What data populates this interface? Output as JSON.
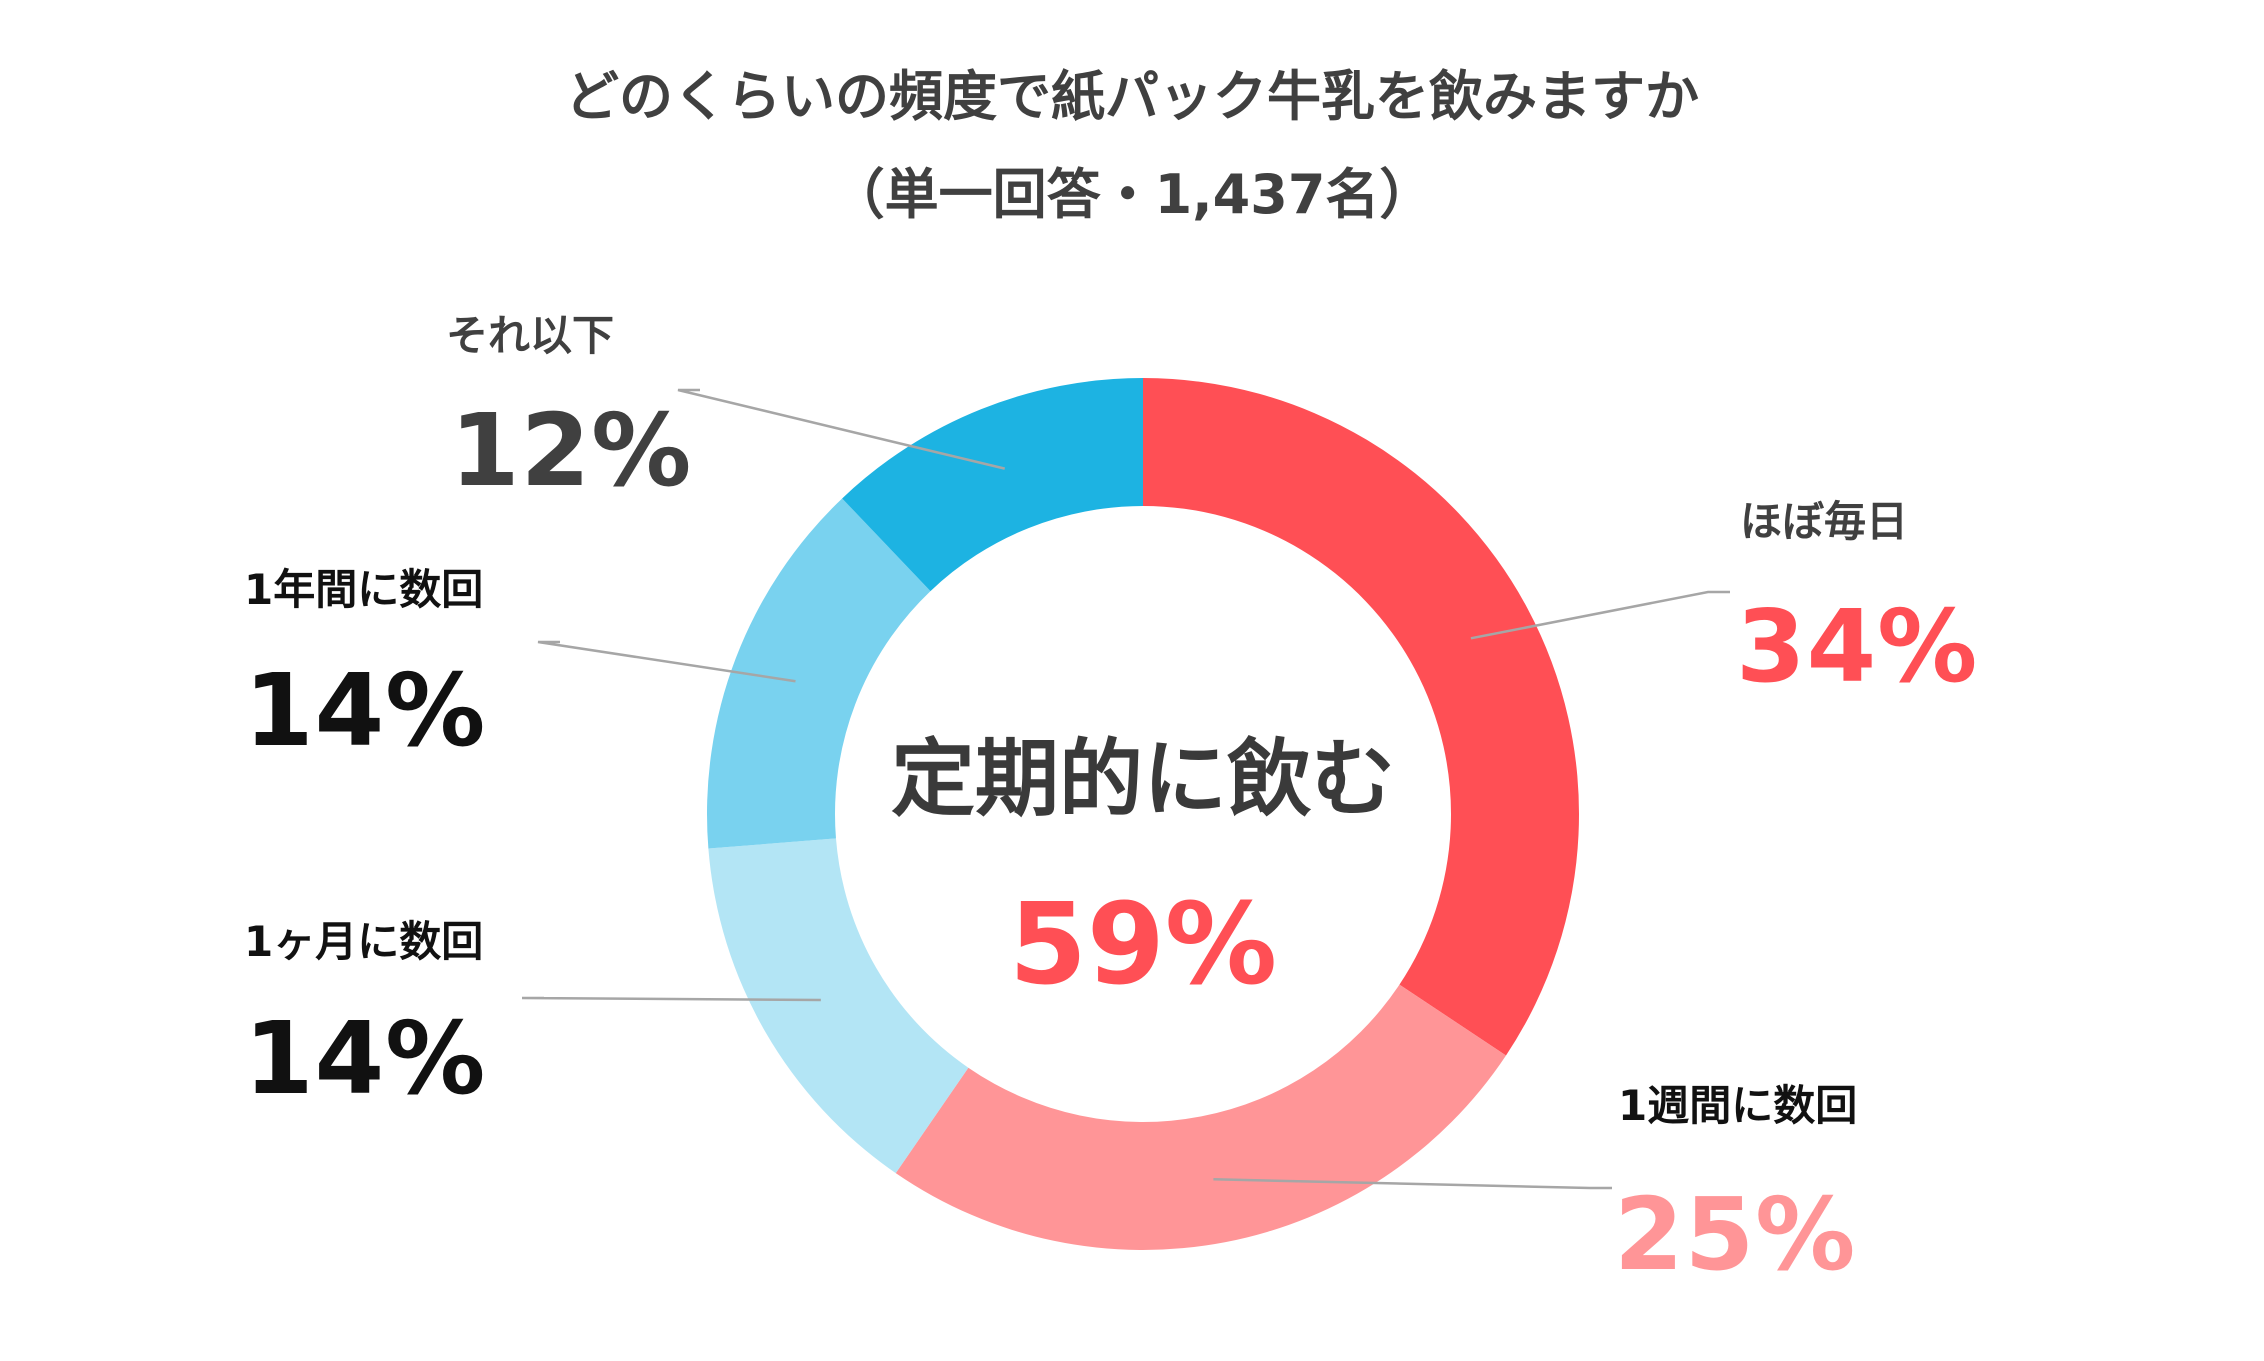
{
  "title": "どのくらいの頻度で紙パック牛乳を飲みますか",
  "subtitle": "（単一回答・1,437名）",
  "colors": {
    "daily": "#ff4f55",
    "weekly": "#ff9597",
    "monthly": "#b3e5f5",
    "yearly": "#79d2ef",
    "less": "#1db3e2",
    "leader": "#a6a6a6",
    "text_dark": "#404040",
    "text_black": "#111111"
  },
  "center": {
    "label": "定期的に飲む",
    "value": "59%"
  },
  "chart_data": {
    "type": "pie",
    "variant": "donut",
    "unit": "%",
    "slices": [
      {
        "key": "daily",
        "label": "ほぼ毎日",
        "value": 34,
        "value_label": "34%"
      },
      {
        "key": "weekly",
        "label": "1週間に数回",
        "value": 25,
        "value_label": "25%"
      },
      {
        "key": "monthly",
        "label": "1ヶ月に数回",
        "value": 14,
        "value_label": "14%"
      },
      {
        "key": "yearly",
        "label": "1年間に数回",
        "value": 14,
        "value_label": "14%"
      },
      {
        "key": "less",
        "label": "それ以下",
        "value": 12,
        "value_label": "12%"
      }
    ]
  }
}
